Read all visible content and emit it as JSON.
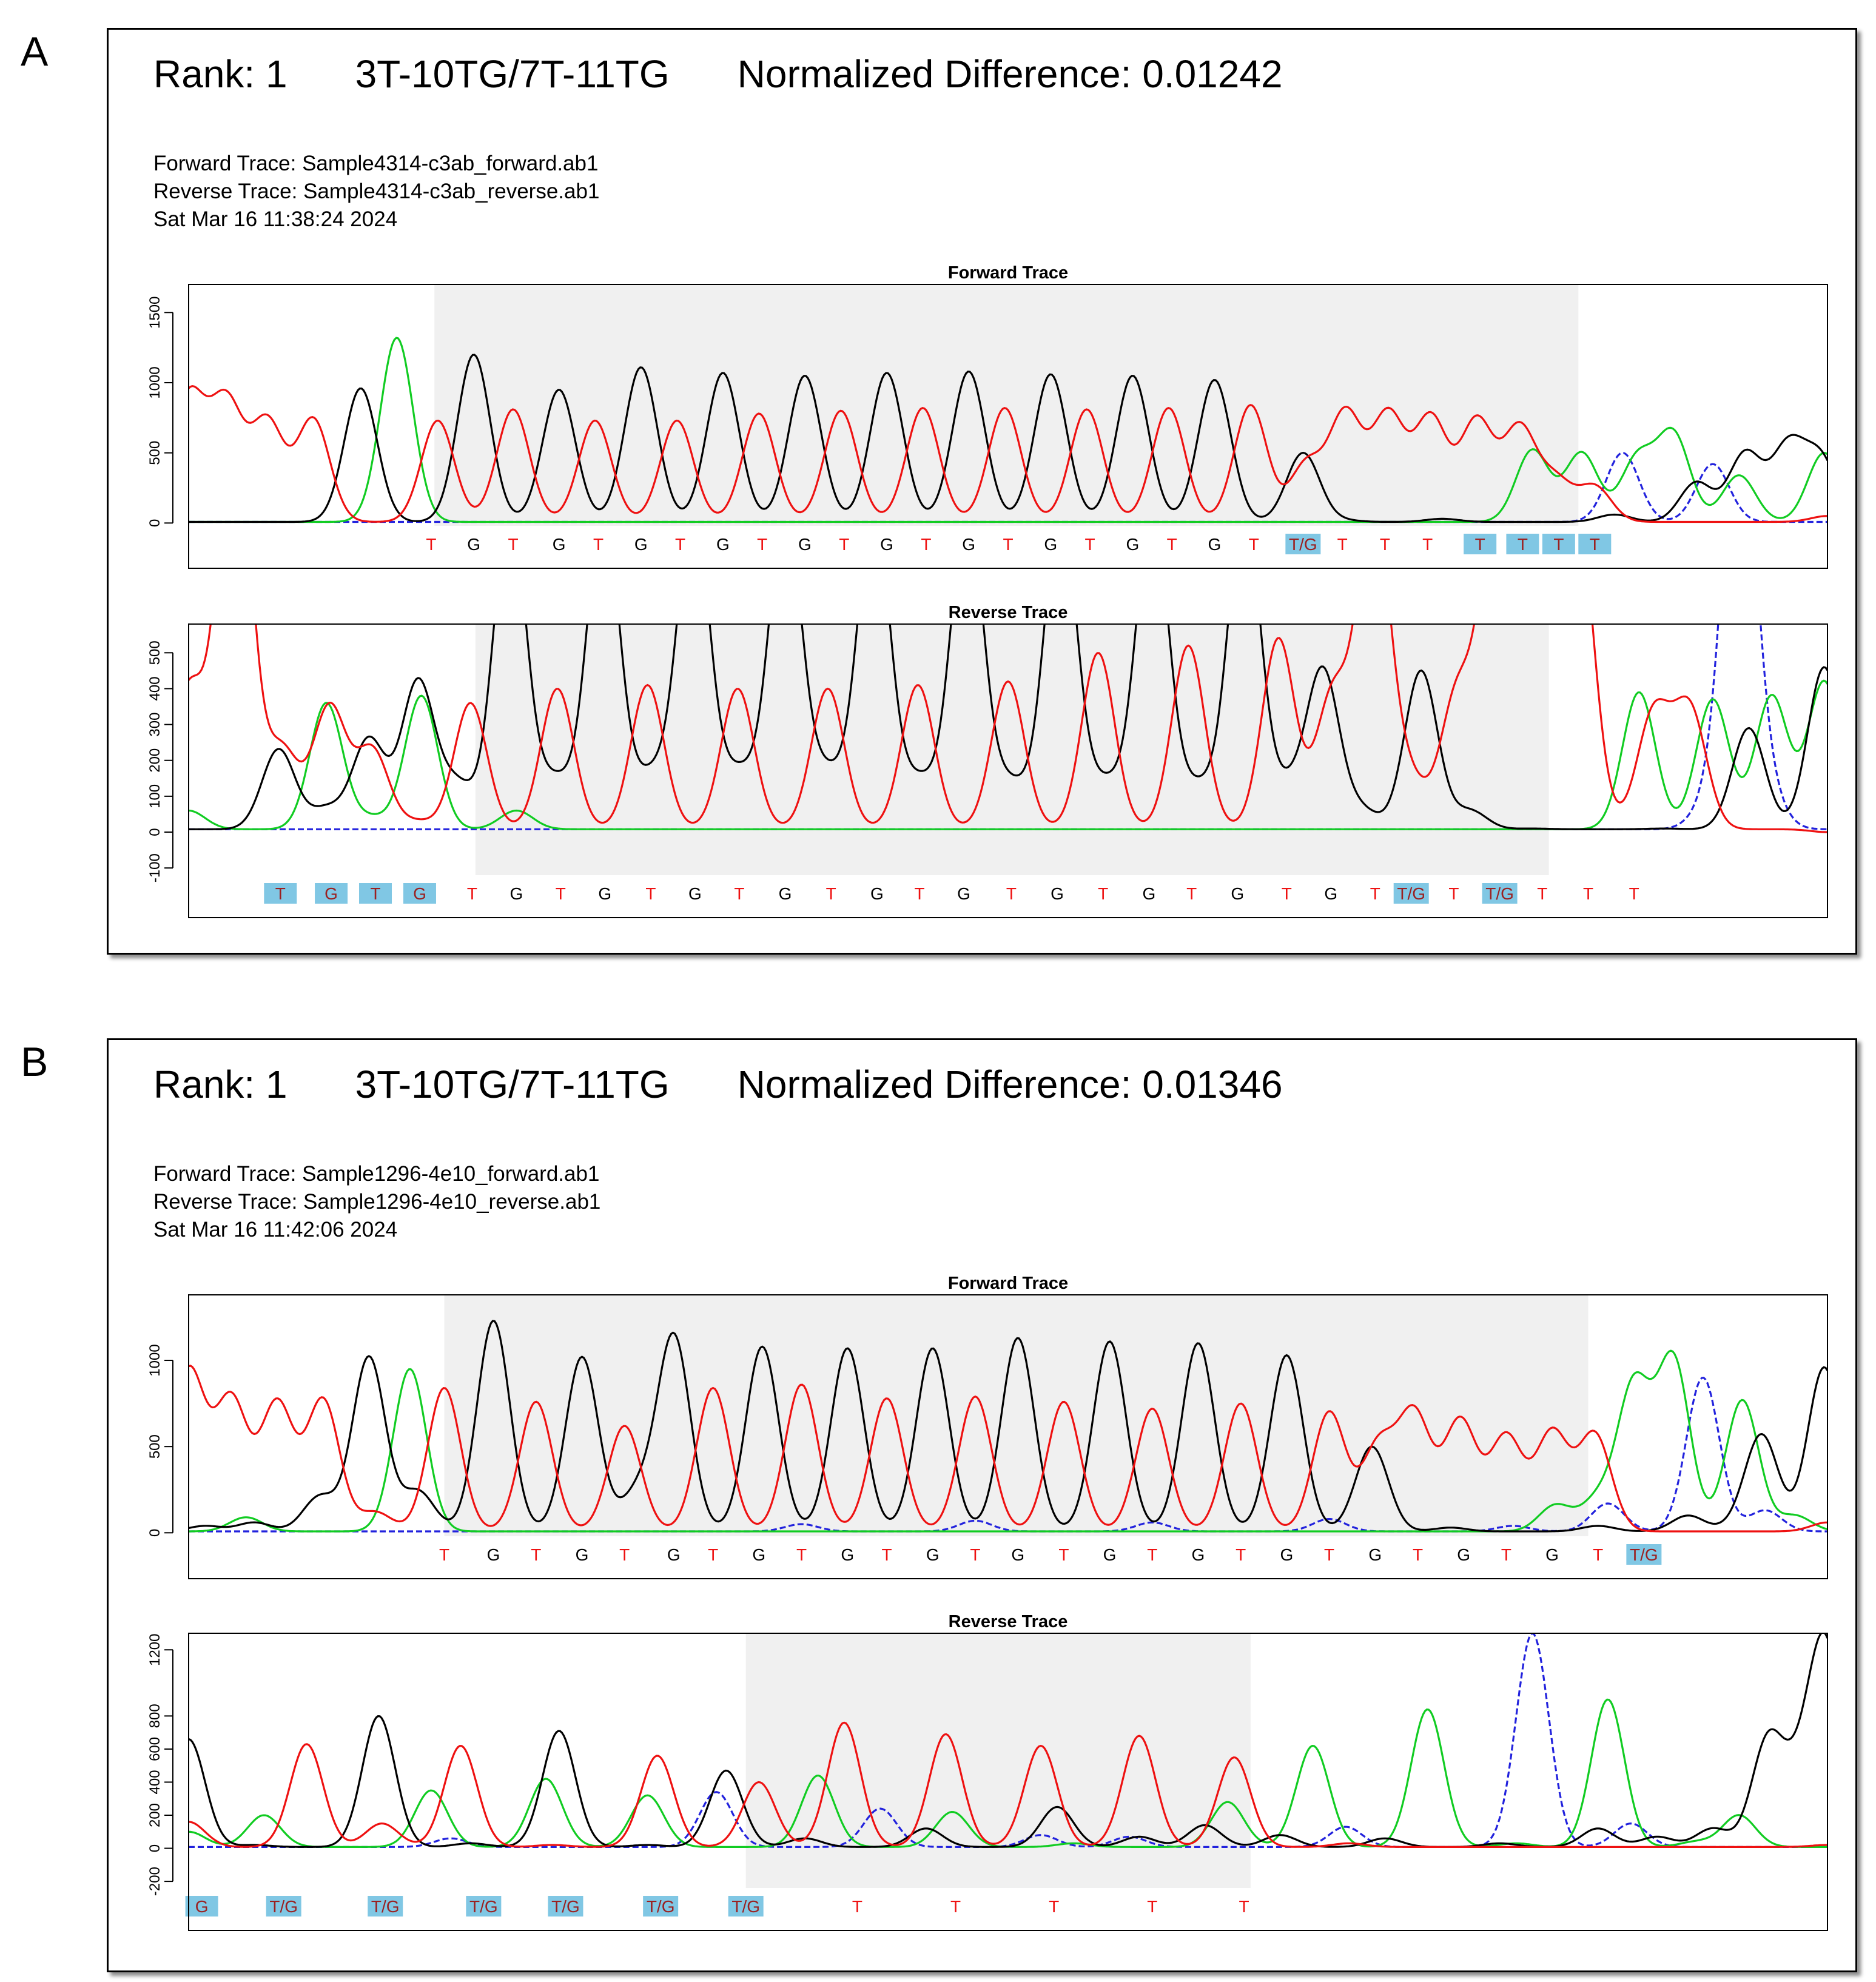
{
  "panels": [
    {
      "letter": "A",
      "header": {
        "rank": "Rank: 1",
        "genotype": "3T-10TG/7T-11TG",
        "difference": "Normalized Difference: 0.01242"
      },
      "meta": {
        "forward": "Forward Trace: Sample4314-c3ab_forward.ab1",
        "reverse": "Reverse Trace: Sample4314-c3ab_reverse.ab1",
        "date": "Sat Mar 16 11:38:24 2024"
      }
    },
    {
      "letter": "B",
      "header": {
        "rank": "Rank: 1",
        "genotype": "3T-10TG/7T-11TG",
        "difference": "Normalized Difference: 0.01346"
      },
      "meta": {
        "forward": "Forward Trace: Sample1296-4e10_forward.ab1",
        "reverse": "Reverse Trace: Sample1296-4e10_reverse.ab1",
        "date": "Sat Mar 16 11:42:06 2024"
      }
    }
  ],
  "colors": {
    "T": "#ee1111",
    "G": "#000000",
    "A": "#11cc22",
    "C": "#2222dd",
    "highlight": "#80c7e4",
    "region": "#f0f0f0",
    "highlight_text": "#9b2020"
  },
  "chart_data": [
    {
      "panel": "A",
      "title": "Forward Trace",
      "type": "line",
      "x_domain": [
        0,
        100
      ],
      "ylim": [
        -20,
        1700
      ],
      "y_ticks": [
        0,
        500,
        1000,
        1500
      ],
      "shaded_region": [
        15.0,
        84.8
      ],
      "base_calls": [
        "T",
        "G",
        "T",
        "G",
        "T",
        "G",
        "T",
        "G",
        "T",
        "G",
        "T",
        "G",
        "T",
        "G",
        "T",
        "G",
        "T",
        "G",
        "T",
        "G",
        "T",
        "T/G",
        "T",
        "T",
        "T",
        "T",
        "T",
        "T",
        "T"
      ],
      "call_positions": [
        14.8,
        17.4,
        19.8,
        22.6,
        25.0,
        27.6,
        30.0,
        32.6,
        35.0,
        37.6,
        40.0,
        42.6,
        45.0,
        47.6,
        50.0,
        52.6,
        55.0,
        57.6,
        60.0,
        62.6,
        65.0,
        68.0,
        70.4,
        73.0,
        75.6,
        78.8,
        81.4,
        83.6,
        85.8
      ],
      "highlighted_calls": [
        21,
        25,
        26,
        27,
        28
      ],
      "series": [
        {
          "name": "T",
          "peaks": [
            [
              0,
              900
            ],
            [
              2.3,
              850
            ],
            [
              4.8,
              720
            ],
            [
              7.6,
              740
            ],
            [
              15.2,
              730
            ],
            [
              19.8,
              810
            ],
            [
              24.8,
              730
            ],
            [
              29.8,
              730
            ],
            [
              34.8,
              780
            ],
            [
              39.8,
              800
            ],
            [
              44.8,
              820
            ],
            [
              49.8,
              820
            ],
            [
              54.8,
              810
            ],
            [
              59.8,
              820
            ],
            [
              64.8,
              840
            ],
            [
              68.2,
              420
            ],
            [
              70.6,
              780
            ],
            [
              73.2,
              770
            ],
            [
              75.8,
              750
            ],
            [
              78.6,
              730
            ],
            [
              81.2,
              670
            ],
            [
              83.4,
              300
            ],
            [
              85.8,
              260
            ],
            [
              100,
              50
            ]
          ]
        },
        {
          "name": "G",
          "peaks": [
            [
              10.5,
              960
            ],
            [
              17.4,
              1200
            ],
            [
              22.6,
              950
            ],
            [
              27.6,
              1110
            ],
            [
              32.6,
              1070
            ],
            [
              37.6,
              1050
            ],
            [
              42.6,
              1070
            ],
            [
              47.6,
              1080
            ],
            [
              52.6,
              1060
            ],
            [
              57.6,
              1050
            ],
            [
              62.6,
              1020
            ],
            [
              68.0,
              500
            ],
            [
              70.4,
              20
            ],
            [
              76.5,
              30
            ],
            [
              87.0,
              60
            ],
            [
              92.0,
              290
            ],
            [
              95.0,
              500
            ],
            [
              97.6,
              540
            ],
            [
              99.6,
              450
            ]
          ]
        },
        {
          "name": "A",
          "peaks": [
            [
              12.7,
              1320
            ],
            [
              82.0,
              520
            ],
            [
              85.0,
              500
            ],
            [
              88.4,
              460
            ],
            [
              90.6,
              630
            ],
            [
              94.6,
              340
            ],
            [
              99.8,
              500
            ]
          ]
        },
        {
          "name": "C",
          "peaks": [
            [
              87.5,
              500
            ],
            [
              93.0,
              420
            ]
          ]
        }
      ]
    },
    {
      "panel": "A",
      "title": "Reverse Trace",
      "type": "line",
      "x_domain": [
        0,
        100
      ],
      "ylim": [
        -120,
        580
      ],
      "y_ticks": [
        -100,
        0,
        100,
        200,
        300,
        400,
        500
      ],
      "shaded_region": [
        17.5,
        83.0
      ],
      "base_calls": [
        "T",
        "G",
        "T",
        "G",
        "T",
        "G",
        "T",
        "G",
        "T",
        "G",
        "T",
        "G",
        "T",
        "G",
        "T",
        "G",
        "T",
        "G",
        "T",
        "G",
        "T",
        "G",
        "T",
        "G",
        "T",
        "T/G",
        "T",
        "T/G",
        "T",
        "T",
        "T"
      ],
      "call_positions": [
        5.6,
        8.7,
        11.4,
        14.1,
        17.3,
        20.0,
        22.7,
        25.4,
        28.2,
        30.9,
        33.6,
        36.4,
        39.2,
        42.0,
        44.6,
        47.3,
        50.2,
        53.0,
        55.8,
        58.6,
        61.2,
        64.0,
        67.0,
        69.7,
        72.4,
        74.6,
        77.2,
        80.0,
        82.6,
        85.4,
        88.2
      ]
    }
  ]
}
